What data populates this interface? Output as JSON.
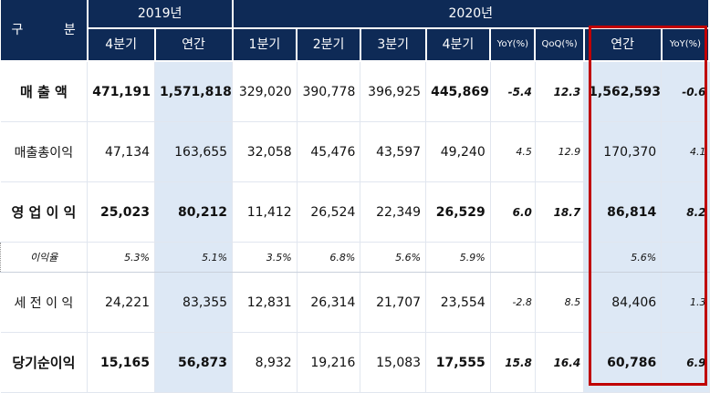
{
  "header": {
    "gubun_a": "구",
    "gubun_b": "분",
    "y2019": "2019년",
    "y2020": "2020년",
    "q4_2019": "4분기",
    "annual_2019": "연간",
    "q1": "1분기",
    "q2": "2분기",
    "q3": "3분기",
    "q4": "4분기",
    "yoy": "YoY(%)",
    "qoq": "QoQ(%)",
    "annual_2020": "연간",
    "yoy_annual": "YoY(%)"
  },
  "rows": [
    {
      "label": "매 출 액",
      "v": [
        "471,191",
        "1,571,818",
        "329,020",
        "390,778",
        "396,925",
        "445,869",
        "-5.4",
        "12.3",
        "1,562,593",
        "-0.6"
      ]
    },
    {
      "label": "매출총이익",
      "v": [
        "47,134",
        "163,655",
        "32,058",
        "45,476",
        "43,597",
        "49,240",
        "4.5",
        "12.9",
        "170,370",
        "4.1"
      ]
    },
    {
      "label": "영 업 이 익",
      "v": [
        "25,023",
        "80,212",
        "11,412",
        "26,524",
        "22,349",
        "26,529",
        "6.0",
        "18.7",
        "86,814",
        "8.2"
      ]
    },
    {
      "label": "이익율",
      "v": [
        "5.3%",
        "5.1%",
        "3.5%",
        "6.8%",
        "5.6%",
        "5.9%",
        "",
        "",
        "5.6%",
        ""
      ]
    },
    {
      "label": "세 전 이 익",
      "v": [
        "24,221",
        "83,355",
        "12,831",
        "26,314",
        "21,707",
        "23,554",
        "-2.8",
        "8.5",
        "84,406",
        "1.3"
      ]
    },
    {
      "label": "당기순이익",
      "v": [
        "15,165",
        "56,873",
        "8,932",
        "19,216",
        "15,083",
        "17,555",
        "15.8",
        "16.4",
        "60,786",
        "6.9"
      ]
    }
  ]
}
